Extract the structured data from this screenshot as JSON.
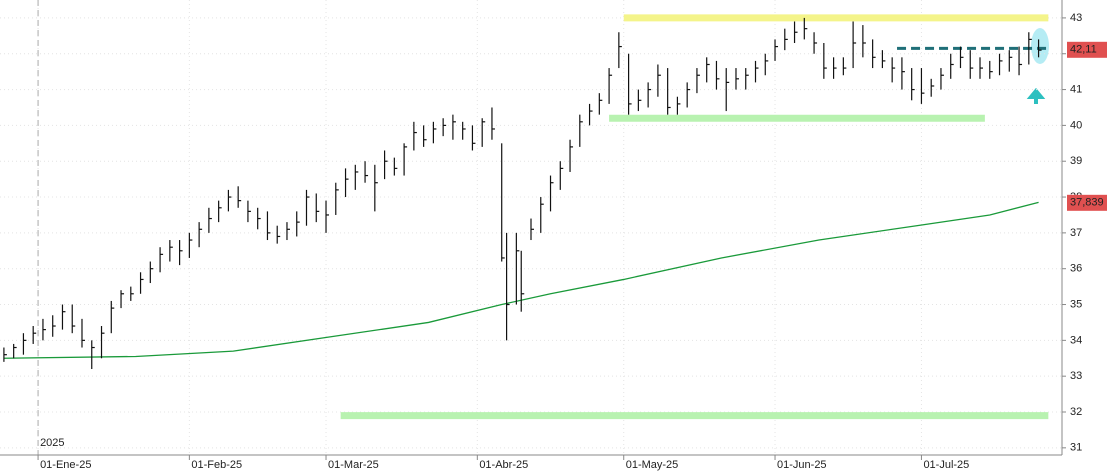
{
  "chart_data": {
    "type": "ohlc",
    "xlim": [
      -7.8,
      209.8
    ],
    "ylim": [
      30.8,
      43.5
    ],
    "xticks": [
      {
        "value": 0,
        "label": "01-Ene-25"
      },
      {
        "value": 31,
        "label": "01-Feb-25"
      },
      {
        "value": 59,
        "label": "01-Mar-25"
      },
      {
        "value": 90,
        "label": "01-Abr-25"
      },
      {
        "value": 120,
        "label": "01-May-25"
      },
      {
        "value": 151,
        "label": "01-Jun-25"
      },
      {
        "value": 181,
        "label": "01-Jul-25"
      }
    ],
    "yticks": [
      31,
      32,
      33,
      34,
      35,
      36,
      37,
      38,
      39,
      40,
      41,
      42,
      43
    ],
    "year_label": {
      "value": 0,
      "label": "2025"
    },
    "grid": true,
    "bar_color": "#111111",
    "x": [
      -7,
      -5,
      -3,
      -1,
      1,
      3,
      5,
      7,
      9,
      11,
      13,
      15,
      17,
      19,
      21,
      23,
      25,
      27,
      29,
      31,
      33,
      35,
      37,
      39,
      41,
      43,
      45,
      47,
      49,
      51,
      53,
      55,
      57,
      59,
      61,
      63,
      65,
      67,
      69,
      71,
      73,
      75,
      77,
      79,
      81,
      83,
      85,
      87,
      89,
      91,
      93,
      95,
      96,
      98,
      99,
      101,
      103,
      105,
      107,
      109,
      111,
      113,
      115,
      117,
      119,
      121,
      123,
      125,
      127,
      129,
      131,
      133,
      135,
      137,
      139,
      141,
      143,
      145,
      147,
      149,
      151,
      153,
      155,
      157,
      159,
      161,
      163,
      165,
      167,
      169,
      171,
      173,
      175,
      177,
      179,
      181,
      183,
      185,
      187,
      189,
      191,
      193,
      195,
      197,
      199,
      201,
      203,
      205
    ],
    "high": [
      33.8,
      33.9,
      34.2,
      34.4,
      34.6,
      34.7,
      35.0,
      35.0,
      34.6,
      34.0,
      34.4,
      35.1,
      35.4,
      35.5,
      35.9,
      36.2,
      36.6,
      36.8,
      36.8,
      37.0,
      37.3,
      37.7,
      37.9,
      38.2,
      38.3,
      37.9,
      37.7,
      37.6,
      37.2,
      37.3,
      37.6,
      38.2,
      38.1,
      37.9,
      38.4,
      38.8,
      38.9,
      39.0,
      38.9,
      39.3,
      39.1,
      39.5,
      40.1,
      40.0,
      40.1,
      40.2,
      40.3,
      40.1,
      40.0,
      40.2,
      40.5,
      39.5,
      37.0,
      37.0,
      36.5,
      37.4,
      38.0,
      38.6,
      39.0,
      39.6,
      40.3,
      40.6,
      40.9,
      41.6,
      42.6,
      42.0,
      41.0,
      41.2,
      41.7,
      41.6,
      40.8,
      41.2,
      41.6,
      41.9,
      41.8,
      41.6,
      41.6,
      41.6,
      41.8,
      42.0,
      42.4,
      42.7,
      42.9,
      43.0,
      42.6,
      42.3,
      41.9,
      41.9,
      42.9,
      42.8,
      42.4,
      42.1,
      41.9,
      41.9,
      41.6,
      41.6,
      41.3,
      41.6,
      42.0,
      42.2,
      42.1,
      41.9,
      41.8,
      42.0,
      42.1,
      42.2,
      42.6,
      42.4
    ],
    "low": [
      33.4,
      33.5,
      33.6,
      33.9,
      34.0,
      34.1,
      34.3,
      34.2,
      33.8,
      33.2,
      33.5,
      34.2,
      34.9,
      35.1,
      35.3,
      35.6,
      35.9,
      36.2,
      36.1,
      36.3,
      36.6,
      37.0,
      37.3,
      37.6,
      37.7,
      37.3,
      37.1,
      36.8,
      36.7,
      36.8,
      36.9,
      37.2,
      37.3,
      37.0,
      37.5,
      38.0,
      38.2,
      38.4,
      37.6,
      38.5,
      38.6,
      38.6,
      39.3,
      39.4,
      39.5,
      39.7,
      39.6,
      39.6,
      39.3,
      39.4,
      39.6,
      36.2,
      34.0,
      35.0,
      34.8,
      36.8,
      37.0,
      37.6,
      38.2,
      38.7,
      39.4,
      40.0,
      40.3,
      40.6,
      41.6,
      40.3,
      40.4,
      40.5,
      40.8,
      40.3,
      40.3,
      40.5,
      40.9,
      41.2,
      41.0,
      40.4,
      41.0,
      41.0,
      41.2,
      41.4,
      41.8,
      42.1,
      42.3,
      42.4,
      42.0,
      41.3,
      41.3,
      41.4,
      41.6,
      41.9,
      41.6,
      41.6,
      41.2,
      41.0,
      40.7,
      40.6,
      40.8,
      41.0,
      41.3,
      41.6,
      41.3,
      41.3,
      41.3,
      41.4,
      41.5,
      41.4,
      41.7,
      41.9
    ],
    "close": [
      33.6,
      33.8,
      34.0,
      34.2,
      34.3,
      34.4,
      34.8,
      34.4,
      34.0,
      33.8,
      34.2,
      34.9,
      35.3,
      35.3,
      35.7,
      36.0,
      36.4,
      36.6,
      36.5,
      36.8,
      37.1,
      37.4,
      37.7,
      38.0,
      37.9,
      37.6,
      37.4,
      37.0,
      36.9,
      37.1,
      37.3,
      38.0,
      37.6,
      37.5,
      38.2,
      38.5,
      38.7,
      38.6,
      38.4,
      39.0,
      38.8,
      39.4,
      39.8,
      39.6,
      39.9,
      40.0,
      40.1,
      39.9,
      39.5,
      40.1,
      39.9,
      36.3,
      35.0,
      36.5,
      35.3,
      37.1,
      37.8,
      38.4,
      38.8,
      39.4,
      40.1,
      40.4,
      40.7,
      41.4,
      42.2,
      40.6,
      40.7,
      41.0,
      41.4,
      40.5,
      40.6,
      41.0,
      41.4,
      41.7,
      41.3,
      41.2,
      41.3,
      41.4,
      41.6,
      41.8,
      42.2,
      42.4,
      42.6,
      42.7,
      42.3,
      41.6,
      41.6,
      41.6,
      42.3,
      42.3,
      41.9,
      41.8,
      41.6,
      41.5,
      41.0,
      40.9,
      41.1,
      41.4,
      41.7,
      41.9,
      41.6,
      41.6,
      41.5,
      41.8,
      41.9,
      41.7,
      42.4,
      42.1
    ],
    "moving_average": {
      "color": "#1a9a3a",
      "x": [
        -7,
        20,
        40,
        60,
        80,
        95,
        105,
        120,
        140,
        160,
        180,
        195,
        205
      ],
      "values": [
        33.5,
        33.55,
        33.7,
        34.1,
        34.5,
        35.0,
        35.3,
        35.7,
        36.3,
        36.8,
        37.2,
        37.5,
        37.85
      ]
    },
    "levels": [
      {
        "value": 43,
        "from": 120,
        "to": 207,
        "color": "#f4f48a",
        "style": "band"
      },
      {
        "value": 40.2,
        "from": 117,
        "to": 194,
        "color": "#b8f2b0",
        "style": "band"
      },
      {
        "value": 31.9,
        "from": 62,
        "to": 207,
        "color": "#b8f2b0",
        "style": "band"
      },
      {
        "value": 42.15,
        "from": 176,
        "to": 207,
        "color": "#1f6f78",
        "style": "dashed"
      }
    ],
    "price_tags": [
      {
        "value": 42.11,
        "label": "42,11",
        "color": "#e05050"
      },
      {
        "value": 37.839,
        "label": "37,839",
        "color": "#e05050"
      }
    ]
  }
}
